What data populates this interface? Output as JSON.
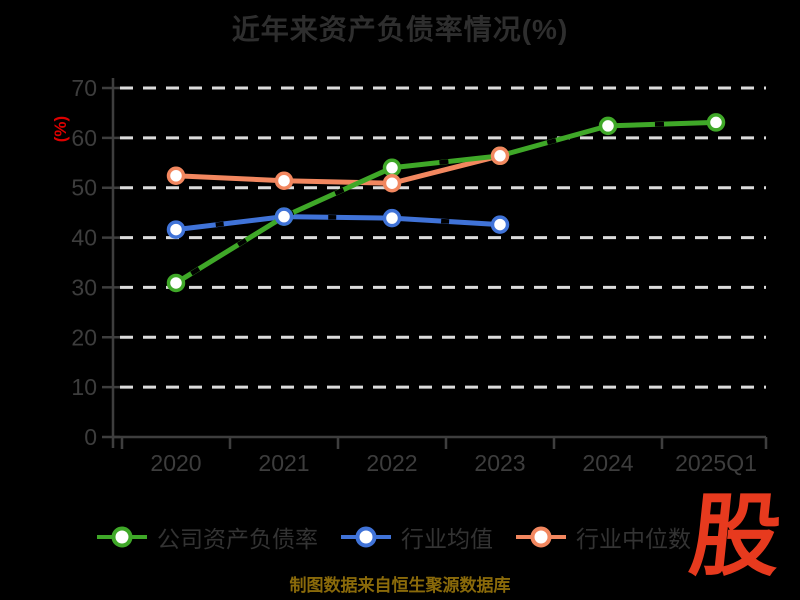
{
  "chart_data": {
    "type": "line",
    "title": "近年来资产负债率情况(%)",
    "ylabel": "(%)",
    "x": [
      "2020",
      "2021",
      "2022",
      "2023",
      "2024",
      "2025Q1"
    ],
    "series": [
      {
        "name": "公司资产负债率",
        "color": "#3fa828",
        "values": [
          30.9,
          44.2,
          54.0,
          56.4,
          62.4,
          63.1
        ]
      },
      {
        "name": "行业均值",
        "color": "#4073d8",
        "values": [
          41.6,
          44.2,
          43.9,
          42.6,
          null,
          null
        ]
      },
      {
        "name": "行业中位数",
        "color": "#f2875f",
        "values": [
          52.4,
          51.4,
          50.9,
          56.4,
          null,
          null
        ]
      }
    ],
    "ylim": [
      0,
      70
    ],
    "yticks": [
      0,
      10,
      20,
      30,
      40,
      50,
      60,
      70
    ],
    "grid": true,
    "legend_position": "bottom",
    "background": "#000000"
  },
  "footer": {
    "caption": "制图数据来自恒生聚源数据库",
    "logo_text": "股"
  },
  "colors": {
    "title": "#2e2e2e",
    "axis": "#3e3e3e",
    "tick_label": "#3d3d3d",
    "grid": "#dcdcdc",
    "ylabel": "#dd0000",
    "legend_text": "#333333",
    "caption": "#8a6a0a",
    "logo": "#e73a1e",
    "marker_fill": "#ffffff"
  }
}
